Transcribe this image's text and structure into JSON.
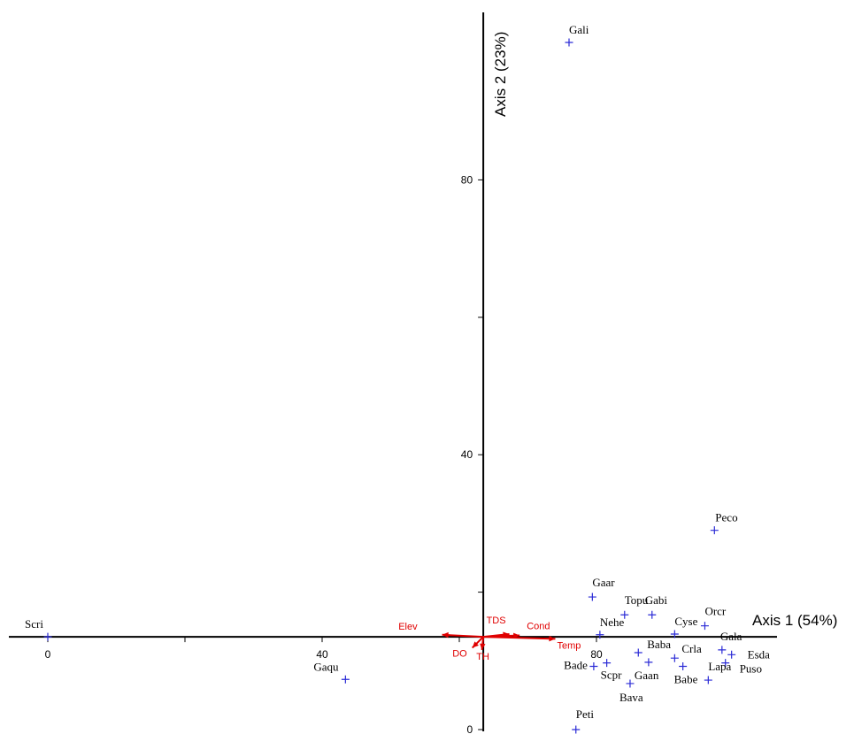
{
  "chart_data": {
    "type": "scatter",
    "title": "",
    "xlabel": "Axis 1 (54%)",
    "ylabel": "Axis 2 (23%)",
    "xlim": [
      -7,
      106
    ],
    "ylim": [
      0,
      104
    ],
    "x_ticks": [
      {
        "value": 0,
        "label": "0"
      },
      {
        "value": 40,
        "label": "40"
      },
      {
        "value": 80,
        "label": "80"
      }
    ],
    "x_minor_ticks": [
      20,
      60
    ],
    "y_ticks": [
      {
        "value": 0,
        "label": "0"
      },
      {
        "value": 40,
        "label": "40"
      },
      {
        "value": 80,
        "label": "80"
      }
    ],
    "y_minor_ticks": [
      20,
      60
    ],
    "x_axis_at_y": 13.5,
    "y_axis_at_x": 63.5,
    "marker_color": "#2b2bd6",
    "vector_color": "#e00000",
    "points": [
      {
        "label": "Scri",
        "x": 0,
        "y": 13.5
      },
      {
        "label": "Gali",
        "x": 76,
        "y": 100
      },
      {
        "label": "Peco",
        "x": 97.2,
        "y": 29
      },
      {
        "label": "Gaar",
        "x": 79.4,
        "y": 19.3
      },
      {
        "label": "Topu",
        "x": 84.1,
        "y": 16.7
      },
      {
        "label": "Gabi",
        "x": 88.1,
        "y": 16.7
      },
      {
        "label": "Nehe",
        "x": 80.5,
        "y": 13.8
      },
      {
        "label": "Cyse",
        "x": 91.4,
        "y": 13.9
      },
      {
        "label": "Orcr",
        "x": 95.8,
        "y": 15.1
      },
      {
        "label": "Gala",
        "x": 98.3,
        "y": 11.6
      },
      {
        "label": "Esda",
        "x": 99.7,
        "y": 10.9
      },
      {
        "label": "Baba",
        "x": 86.1,
        "y": 11.2
      },
      {
        "label": "Crla",
        "x": 91.4,
        "y": 10.4
      },
      {
        "label": "Bade",
        "x": 79.6,
        "y": 9.2
      },
      {
        "label": "Scpr",
        "x": 81.5,
        "y": 9.7
      },
      {
        "label": "Gaan",
        "x": 87.6,
        "y": 9.8
      },
      {
        "label": "Babe",
        "x": 92.6,
        "y": 9.2
      },
      {
        "label": "Lapa",
        "x": 96.3,
        "y": 7.2
      },
      {
        "label": "Puso",
        "x": 98.8,
        "y": 9.7
      },
      {
        "label": "Bava",
        "x": 84.9,
        "y": 6.7
      },
      {
        "label": "Gaqu",
        "x": 43.4,
        "y": 7.3
      },
      {
        "label": "Peti",
        "x": 77,
        "y": 0
      }
    ],
    "vectors": [
      {
        "label": "Elev",
        "x": -6,
        "y": 0.3
      },
      {
        "label": "TDS",
        "x": 3.8,
        "y": 0.4
      },
      {
        "label": "Cond",
        "x": 5.3,
        "y": 0.2
      },
      {
        "label": "Temp",
        "x": 10.5,
        "y": -0.3
      },
      {
        "label": "DO",
        "x": -1.6,
        "y": -1.6
      },
      {
        "label": "TH",
        "x": -0.2,
        "y": -1.9
      }
    ]
  }
}
